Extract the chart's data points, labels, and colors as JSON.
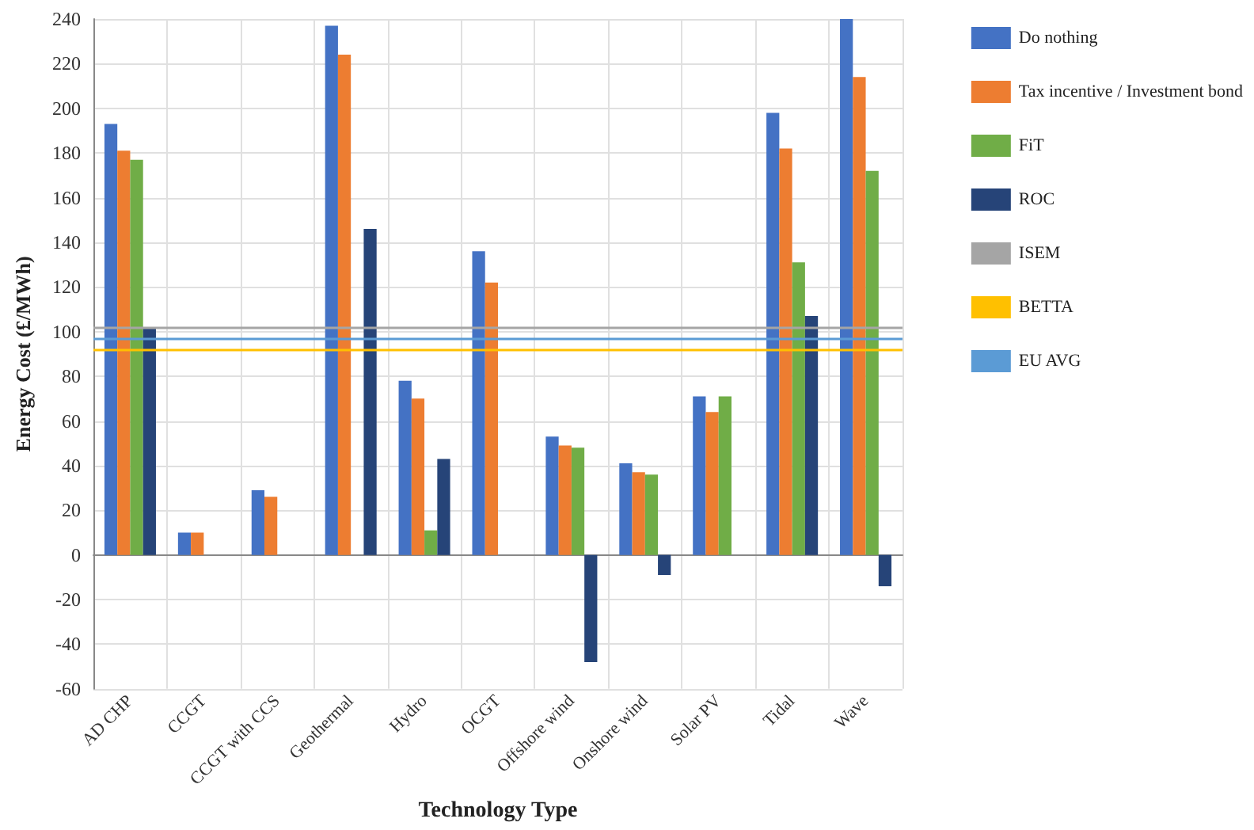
{
  "chart_data": {
    "type": "bar",
    "xlabel": "Technology Type",
    "ylabel": "Energy Cost (£/MWh)",
    "categories": [
      "AD CHP",
      "CCGT",
      "CCGT with CCS",
      "Geothermal",
      "Hydro",
      "OCGT",
      "Offshore wind",
      "Onshore wind",
      "Solar PV",
      "Tidal",
      "Wave"
    ],
    "series": [
      {
        "name": "Do nothing",
        "color": "#4472c4",
        "values": [
          193,
          10,
          29,
          237,
          78,
          136,
          53,
          41,
          71,
          198,
          240
        ]
      },
      {
        "name": "Tax incentive / Investment bond",
        "color": "#ed7d31",
        "values": [
          181,
          10,
          26,
          224,
          70,
          122,
          49,
          37,
          64,
          182,
          214
        ]
      },
      {
        "name": "FiT",
        "color": "#70ad47",
        "values": [
          177,
          null,
          null,
          null,
          11,
          null,
          48,
          36,
          71,
          131,
          172
        ]
      },
      {
        "name": "ROC",
        "color": "#264478",
        "values": [
          102,
          null,
          null,
          146,
          43,
          null,
          -48,
          -9,
          null,
          107,
          -14
        ]
      }
    ],
    "ref_lines": [
      {
        "axis": "y",
        "value": 102,
        "label": "ISEM",
        "color": "#a5a5a5"
      },
      {
        "axis": "y",
        "value": 92,
        "label": "BETTA",
        "color": "#ffc000"
      },
      {
        "axis": "y",
        "value": 97,
        "label": "EU AVG",
        "color": "#5b9bd5"
      }
    ],
    "ylim": [
      -60,
      240
    ],
    "yticks": [
      -60,
      -40,
      -20,
      0,
      20,
      40,
      60,
      80,
      100,
      120,
      140,
      160,
      180,
      200,
      220,
      240
    ],
    "grid": true,
    "legend": "right"
  }
}
